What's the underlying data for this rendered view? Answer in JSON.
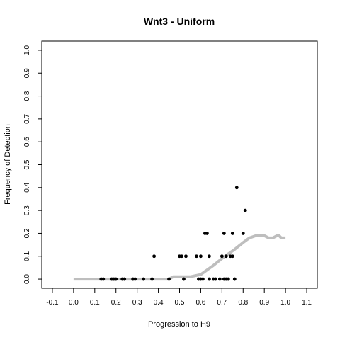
{
  "chart_data": {
    "type": "scatter",
    "title": "Wnt3 - Uniform",
    "xlabel": "Progression to H9",
    "ylabel": "Frequency of Detection",
    "xlim": [
      -0.15,
      1.15
    ],
    "ylim": [
      -0.04,
      1.04
    ],
    "x_ticks": [
      -0.1,
      0.0,
      0.1,
      0.2,
      0.3,
      0.4,
      0.5,
      0.6,
      0.7,
      0.8,
      0.9,
      1.0,
      1.1
    ],
    "x_tick_labels": [
      "-0.1",
      "0.0",
      "0.1",
      "0.2",
      "0.3",
      "0.4",
      "0.5",
      "0.6",
      "0.7",
      "0.8",
      "0.9",
      "1.0",
      "1.1"
    ],
    "y_ticks": [
      0.0,
      0.1,
      0.2,
      0.3,
      0.4,
      0.5,
      0.6,
      0.7,
      0.8,
      0.9,
      1.0
    ],
    "y_tick_labels": [
      "0.0",
      "0.1",
      "0.2",
      "0.3",
      "0.4",
      "0.5",
      "0.6",
      "0.7",
      "0.8",
      "0.9",
      "1.0"
    ],
    "grid": false,
    "legend": "none",
    "colors": {
      "points": "#000000",
      "smooth_line": "#bebebe",
      "axes": "#000000",
      "background": "#ffffff"
    },
    "series": [
      {
        "style": "points",
        "x": [
          0.13,
          0.14,
          0.18,
          0.19,
          0.2,
          0.23,
          0.24,
          0.28,
          0.29,
          0.33,
          0.37,
          0.38,
          0.45,
          0.5,
          0.51,
          0.52,
          0.53,
          0.58,
          0.59,
          0.6,
          0.6,
          0.61,
          0.62,
          0.63,
          0.64,
          0.64,
          0.66,
          0.67,
          0.69,
          0.7,
          0.71,
          0.71,
          0.72,
          0.72,
          0.73,
          0.74,
          0.75,
          0.75,
          0.76,
          0.77,
          0.8,
          0.81
        ],
        "y": [
          0.0,
          0.0,
          0.0,
          0.0,
          0.0,
          0.0,
          0.0,
          0.0,
          0.0,
          0.0,
          0.0,
          0.1,
          0.0,
          0.1,
          0.1,
          0.0,
          0.1,
          0.1,
          0.0,
          0.0,
          0.1,
          0.0,
          0.2,
          0.2,
          0.1,
          0.0,
          0.0,
          0.0,
          0.0,
          0.1,
          0.0,
          0.2,
          0.1,
          0.0,
          0.0,
          0.1,
          0.2,
          0.1,
          0.0,
          0.4,
          0.2,
          0.3
        ]
      },
      {
        "style": "line",
        "x": [
          0.0,
          0.1,
          0.2,
          0.3,
          0.4,
          0.45,
          0.47,
          0.52,
          0.55,
          0.6,
          0.63,
          0.66,
          0.7,
          0.73,
          0.76,
          0.8,
          0.83,
          0.86,
          0.88,
          0.9,
          0.92,
          0.94,
          0.96,
          0.97,
          0.98,
          1.0
        ],
        "y": [
          0.0,
          0.0,
          0.0,
          0.0,
          0.0,
          0.0,
          0.01,
          0.01,
          0.01,
          0.02,
          0.04,
          0.06,
          0.09,
          0.11,
          0.13,
          0.16,
          0.18,
          0.19,
          0.19,
          0.19,
          0.18,
          0.18,
          0.19,
          0.19,
          0.18,
          0.18
        ]
      }
    ]
  }
}
